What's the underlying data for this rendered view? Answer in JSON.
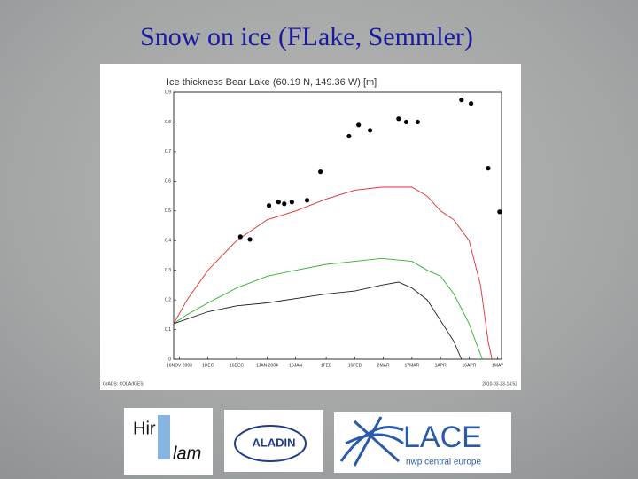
{
  "slide_title": "Snow on ice (FLake, Semmler)",
  "chart_data": {
    "type": "line",
    "title": "Ice thickness Bear Lake (60.19 N, 149.36 W) [m]",
    "xlim": [
      "2003-11-13",
      "2004-05-03"
    ],
    "xticks": [
      {
        "value": "2003-11-16",
        "label": "16NOV 2003"
      },
      {
        "value": "2003-12-01",
        "label": "1DEC"
      },
      {
        "value": "2003-12-16",
        "label": "16DEC"
      },
      {
        "value": "2004-01-01",
        "label": "1JAN 2004"
      },
      {
        "value": "2004-01-16",
        "label": "16JAN"
      },
      {
        "value": "2004-02-01",
        "label": "1FEB"
      },
      {
        "value": "2004-02-16",
        "label": "16FEB"
      },
      {
        "value": "2004-03-02",
        "label": "2MAR"
      },
      {
        "value": "2004-03-17",
        "label": "17MAR"
      },
      {
        "value": "2004-04-01",
        "label": "1APR"
      },
      {
        "value": "2004-04-16",
        "label": "16APR"
      },
      {
        "value": "2004-05-01",
        "label": "1MAY"
      }
    ],
    "ylim": [
      0,
      0.9
    ],
    "yticks": [
      0,
      0.1,
      0.2,
      0.3,
      0.4,
      0.5,
      0.6,
      0.7,
      0.8,
      0.9
    ],
    "series": [
      {
        "color": "#e03030",
        "mode": "line",
        "x": [
          "2003-11-13",
          "2003-11-20",
          "2003-12-01",
          "2003-12-16",
          "2004-01-01",
          "2004-01-16",
          "2004-02-01",
          "2004-02-16",
          "2004-03-01",
          "2004-03-17",
          "2004-03-25",
          "2004-04-01",
          "2004-04-08",
          "2004-04-16",
          "2004-04-22",
          "2004-04-26",
          "2004-04-28"
        ],
        "values": [
          0.12,
          0.2,
          0.3,
          0.4,
          0.47,
          0.5,
          0.54,
          0.57,
          0.58,
          0.58,
          0.55,
          0.5,
          0.47,
          0.4,
          0.25,
          0.06,
          0.0
        ]
      },
      {
        "color": "#30b030",
        "mode": "line",
        "x": [
          "2003-11-13",
          "2003-11-20",
          "2003-12-01",
          "2003-12-16",
          "2004-01-01",
          "2004-01-16",
          "2004-02-01",
          "2004-02-16",
          "2004-03-01",
          "2004-03-17",
          "2004-03-25",
          "2004-04-01",
          "2004-04-08",
          "2004-04-16",
          "2004-04-20",
          "2004-04-23"
        ],
        "values": [
          0.12,
          0.15,
          0.19,
          0.24,
          0.28,
          0.3,
          0.32,
          0.33,
          0.34,
          0.33,
          0.3,
          0.28,
          0.22,
          0.12,
          0.05,
          0.0
        ]
      },
      {
        "color": "#202020",
        "mode": "line",
        "x": [
          "2003-11-13",
          "2003-12-01",
          "2003-12-16",
          "2004-01-01",
          "2004-02-01",
          "2004-02-16",
          "2004-03-01",
          "2004-03-10",
          "2004-03-17",
          "2004-03-25",
          "2004-04-01",
          "2004-04-08",
          "2004-04-12"
        ],
        "values": [
          0.12,
          0.16,
          0.18,
          0.19,
          0.22,
          0.23,
          0.25,
          0.26,
          0.24,
          0.2,
          0.13,
          0.06,
          0.0
        ]
      },
      {
        "color": "#000000",
        "mode": "markers",
        "x": [
          "2003-12-18",
          "2003-12-23",
          "2004-01-02",
          "2004-01-07",
          "2004-01-10",
          "2004-01-14",
          "2004-01-22",
          "2004-01-29",
          "2004-02-13",
          "2004-02-18",
          "2004-02-24",
          "2004-03-10",
          "2004-03-14",
          "2004-03-20",
          "2004-04-12",
          "2004-04-17",
          "2004-04-26",
          "2004-05-02"
        ],
        "values": [
          0.413,
          0.404,
          0.518,
          0.53,
          0.524,
          0.53,
          0.536,
          0.632,
          0.752,
          0.79,
          0.772,
          0.811,
          0.8,
          0.8,
          0.874,
          0.862,
          0.644,
          0.497
        ]
      }
    ]
  },
  "chart_footer": {
    "left": "GrADS: COLA/IGES",
    "right": "2010-03-23-14:52"
  },
  "logos": {
    "hirlam": [
      "Hir",
      "lam"
    ],
    "aladin": "ALADIN",
    "lace": "LACE",
    "lace_sub": "nwp central europe"
  }
}
